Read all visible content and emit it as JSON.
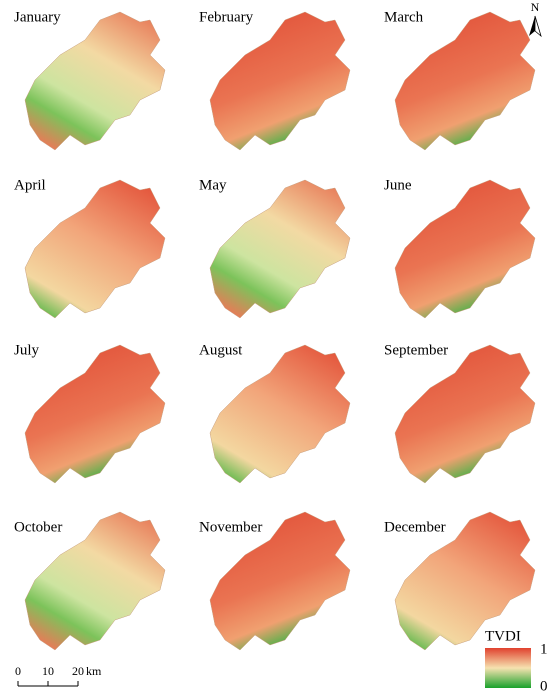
{
  "panels": [
    {
      "label": "January"
    },
    {
      "label": "February"
    },
    {
      "label": "March"
    },
    {
      "label": "April"
    },
    {
      "label": "May"
    },
    {
      "label": "June"
    },
    {
      "label": "July"
    },
    {
      "label": "August"
    },
    {
      "label": "September"
    },
    {
      "label": "October"
    },
    {
      "label": "November"
    },
    {
      "label": "December"
    }
  ],
  "north": "N",
  "legend": {
    "title": "TVDI",
    "max": 1,
    "min": 0
  },
  "scale_bar": {
    "ticks": [
      0,
      10,
      20
    ],
    "unit": "km"
  }
}
